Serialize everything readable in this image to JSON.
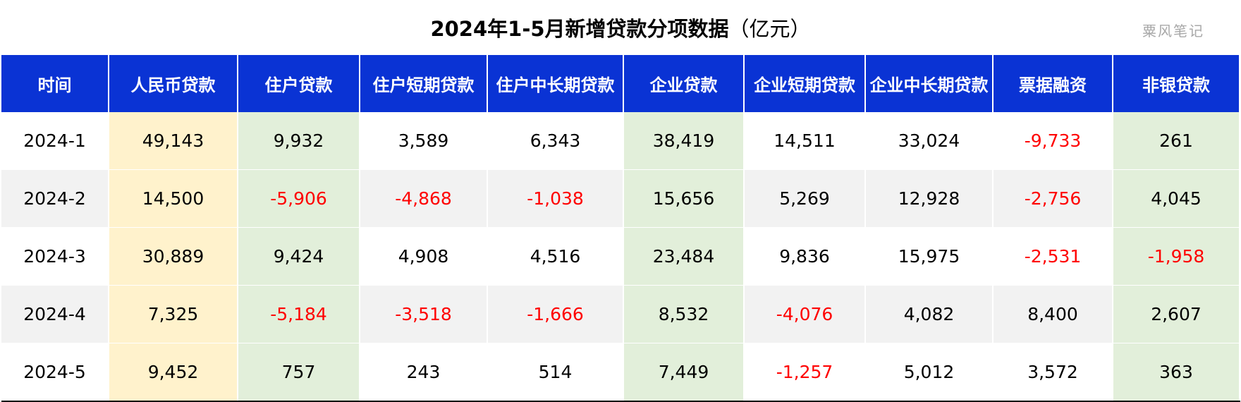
{
  "title": {
    "main": "2024年1-5月新增贷款分项数据",
    "unit": "（亿元）"
  },
  "watermark": "粟风笔记",
  "table": {
    "headers": [
      "时间",
      "人民币贷款",
      "住户贷款",
      "住户短期贷款",
      "住户中长期贷款",
      "企业贷款",
      "企业短期贷款",
      "企业中长期贷款",
      "票据融资",
      "非银贷款"
    ],
    "rows": [
      [
        "2024-1",
        "49,143",
        "9,932",
        "3,589",
        "6,343",
        "38,419",
        "14,511",
        "33,024",
        "-9,733",
        "261"
      ],
      [
        "2024-2",
        "14,500",
        "-5,906",
        "-4,868",
        "-1,038",
        "15,656",
        "5,269",
        "12,928",
        "-2,756",
        "4,045"
      ],
      [
        "2024-3",
        "30,889",
        "9,424",
        "4,908",
        "4,516",
        "23,484",
        "9,836",
        "15,975",
        "-2,531",
        "-1,958"
      ],
      [
        "2024-4",
        "7,325",
        "-5,184",
        "-3,518",
        "-1,666",
        "8,532",
        "-4,076",
        "4,082",
        "8,400",
        "2,607"
      ],
      [
        "2024-5",
        "9,452",
        "757",
        "243",
        "514",
        "7,449",
        "-1,257",
        "5,012",
        "3,572",
        "363"
      ]
    ]
  },
  "colors": {
    "header_bg": "#0a33d4",
    "highlight_yellow": "#fff2cc",
    "highlight_green": "#e2efda",
    "negative": "#ff0000",
    "stripe": "#f2f2f2"
  }
}
